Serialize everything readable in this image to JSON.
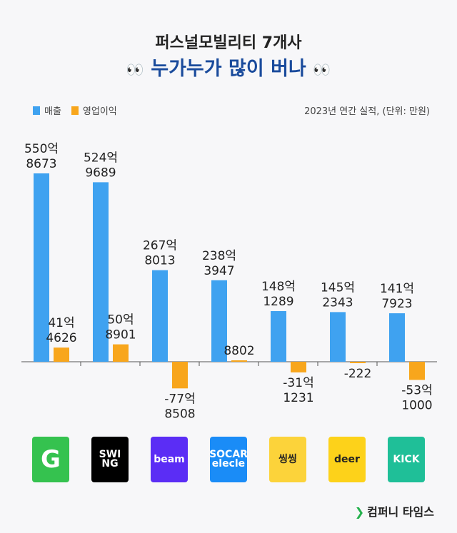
{
  "title_line1": "퍼스널모빌리티 7개사",
  "title_line2": "누가누가 많이 버나",
  "title_emoji": "👀",
  "legend": [
    {
      "name": "매출",
      "color": "#3fa2f0"
    },
    {
      "name": "영업이익",
      "color": "#f8a61c"
    }
  ],
  "note": "2023년 연간 실적, (단위: 만원)",
  "brand": "컴퍼니 타임스",
  "chart_data": {
    "type": "bar",
    "unit": "만원",
    "categories": [
      "Gcoo",
      "SWING",
      "beam",
      "SOCAR elecle",
      "씽씽",
      "deer",
      "KICK"
    ],
    "series": [
      {
        "name": "매출",
        "color": "#3fa2f0",
        "values": [
          5508673,
          5249689,
          2678013,
          2383947,
          1481289,
          1452343,
          1417923
        ],
        "labels": [
          [
            "550억",
            "8673"
          ],
          [
            "524억",
            "9689"
          ],
          [
            "267억",
            "8013"
          ],
          [
            "238억",
            "3947"
          ],
          [
            "148억",
            "1289"
          ],
          [
            "145억",
            "2343"
          ],
          [
            "141억",
            "7923"
          ]
        ]
      },
      {
        "name": "영업이익",
        "color": "#f8a61c",
        "values": [
          414626,
          508901,
          -778508,
          8802,
          -311231,
          -222,
          -531000
        ],
        "labels": [
          [
            "41억",
            "4626"
          ],
          [
            "50억",
            "8901"
          ],
          [
            "-77억",
            "8508"
          ],
          [
            "",
            "8802"
          ],
          [
            "-31억",
            "1231"
          ],
          [
            "",
            "-222"
          ],
          [
            "-53억",
            "1000"
          ]
        ]
      }
    ]
  },
  "logos": [
    {
      "name": "gcoo",
      "text": "G",
      "bg": "#35c24f",
      "fg": "#ffffff"
    },
    {
      "name": "swing",
      "text": "SWI NG",
      "bg": "#000000",
      "fg": "#ffffff"
    },
    {
      "name": "beam",
      "text": "beam",
      "bg": "#5b2df5",
      "fg": "#ffffff"
    },
    {
      "name": "socar-elecle",
      "text": "SOCAR elecle",
      "bg": "#1a8cf7",
      "fg": "#ffffff"
    },
    {
      "name": "xingxing",
      "text": "씽씽",
      "bg": "#fcd33a",
      "fg": "#222222"
    },
    {
      "name": "deer",
      "text": "deer",
      "bg": "#fdd21a",
      "fg": "#222222"
    },
    {
      "name": "kick",
      "text": "KICK",
      "bg": "#1fbf98",
      "fg": "#ffffff"
    }
  ]
}
